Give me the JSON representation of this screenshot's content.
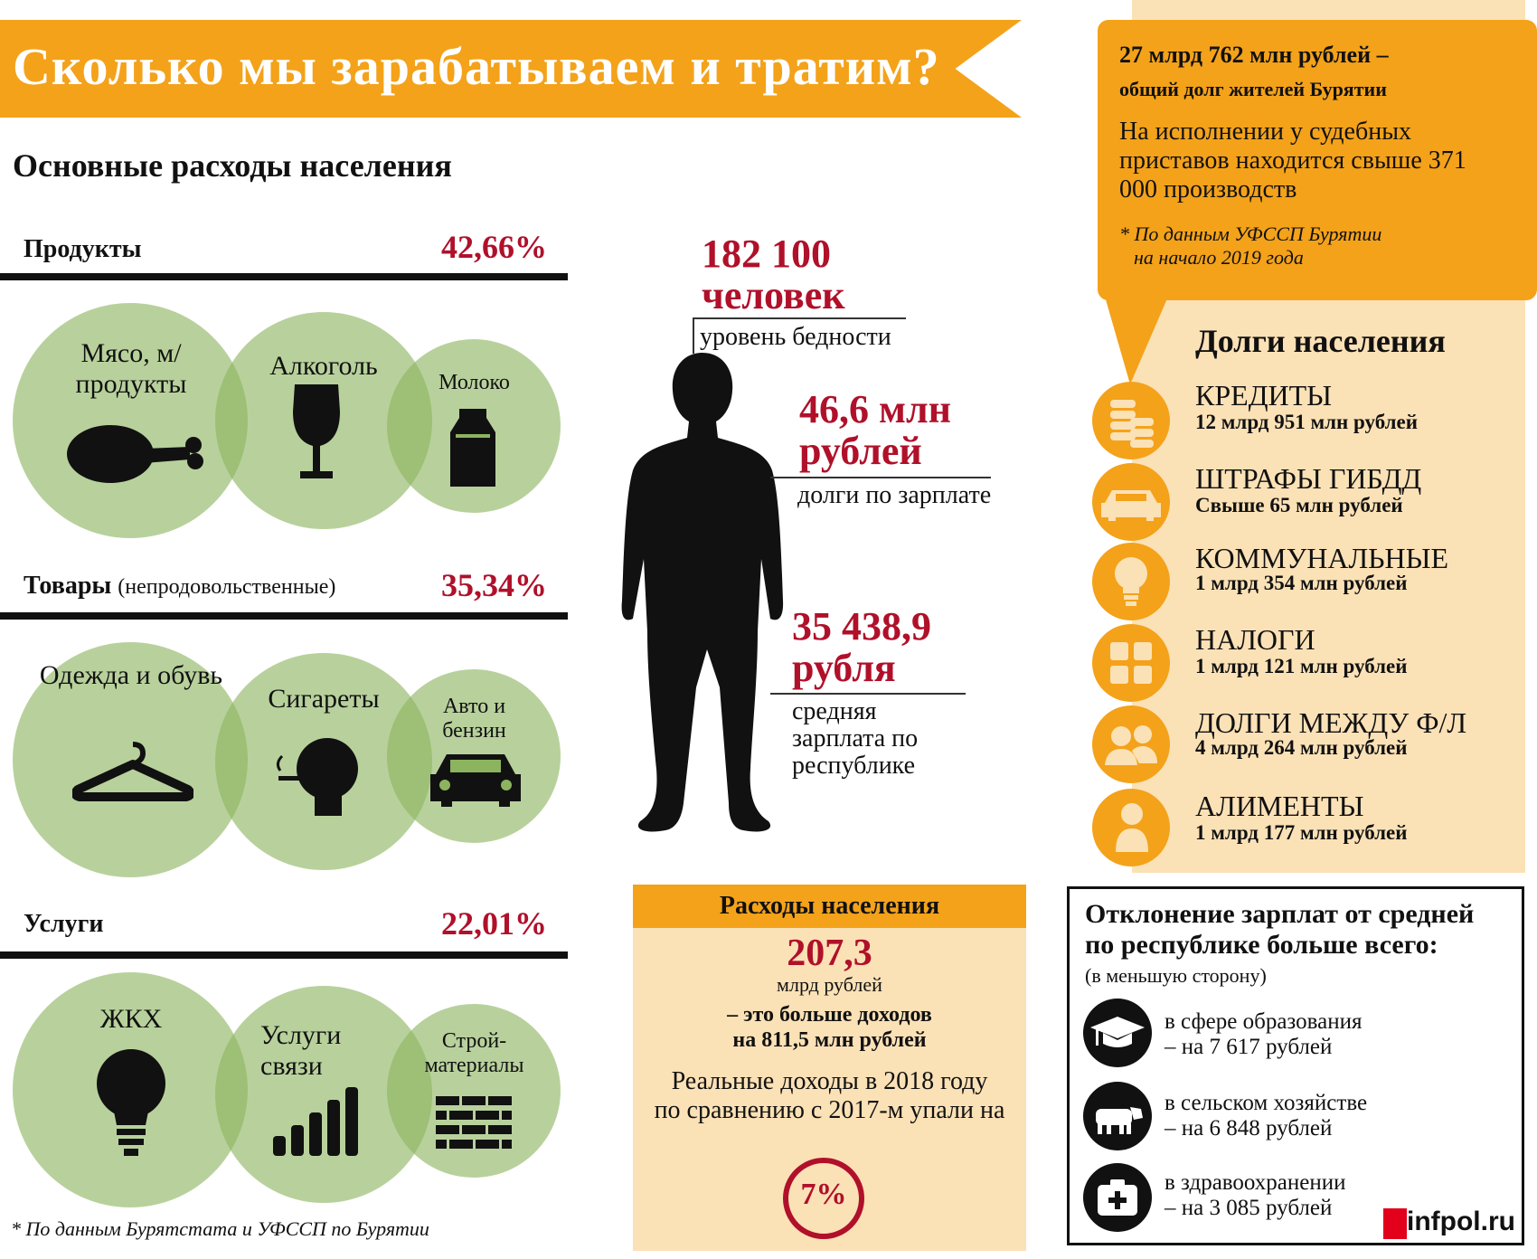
{
  "header": {
    "title": "Сколько мы зарабатываем и тратим?"
  },
  "expenses": {
    "heading": "Основные расходы населения",
    "categories": [
      {
        "label": "Продукты",
        "sublabel": "",
        "percent": "42,66%",
        "items": [
          {
            "label": "Мясо, м/продукты",
            "icon": "chicken-leg-icon"
          },
          {
            "label": "Алкоголь",
            "icon": "wine-glass-icon"
          },
          {
            "label": "Молоко",
            "icon": "milk-carton-icon"
          }
        ]
      },
      {
        "label": "Товары",
        "sublabel": "(непродовольственные)",
        "percent": "35,34%",
        "items": [
          {
            "label": "Одежда и обувь",
            "icon": "hanger-icon"
          },
          {
            "label": "Сигареты",
            "icon": "smoker-icon"
          },
          {
            "label": "Авто и бензин",
            "icon": "car-icon"
          }
        ]
      },
      {
        "label": "Услуги",
        "sublabel": "",
        "percent": "22,01%",
        "items": [
          {
            "label": "ЖКХ",
            "icon": "lightbulb-icon"
          },
          {
            "label": "Услуги связи",
            "icon": "signal-bars-icon"
          },
          {
            "label": "Строй-материалы",
            "icon": "bricks-icon"
          }
        ]
      }
    ],
    "footnote": "* По данным Бурятстата и УФССП по Бурятии"
  },
  "person_stats": [
    {
      "value_line1": "182 100",
      "value_line2": "человек",
      "caption": "уровень бедности"
    },
    {
      "value_line1": "46,6 млн",
      "value_line2": "рублей",
      "caption": "долги по зарплате"
    },
    {
      "value_line1": "35 438,9",
      "value_line2": "рубля",
      "caption": "средняя зарплата по республике"
    }
  ],
  "spending_box": {
    "heading": "Расходы населения",
    "amount": "207,3",
    "unit": "млрд рублей",
    "note_line1": "– это больше доходов",
    "note_line2": "на 811,5 млн рублей",
    "real_income_line1": "Реальные доходы в 2018 году",
    "real_income_line2": "по сравнению с 2017-м упали на",
    "drop_percent": "7%"
  },
  "total_debt": {
    "headline": "27 млрд 762 млн рублей –",
    "subline": "общий долг жителей Бурятии",
    "body": "На исполнении у судебных приставов находится свыше 371 000 производств",
    "source_line1": "* По данным УФССП Бурятии",
    "source_line2": "на начало 2019 года"
  },
  "debts": {
    "heading": "Долги населения",
    "items": [
      {
        "title": "КРЕДИТЫ",
        "value": "12 млрд 951 млн рублей",
        "icon": "coins-icon"
      },
      {
        "title": "ШТРАФЫ ГИБДД",
        "value": "Свыше 65 млн рублей",
        "icon": "car-icon"
      },
      {
        "title": "КОММУНАЛЬНЫЕ",
        "value": "1 млрд 354 млн рублей",
        "icon": "lightbulb-icon"
      },
      {
        "title": "НАЛОГИ",
        "value": "1 млрд 121 млн рублей",
        "icon": "calculator-icon"
      },
      {
        "title": "ДОЛГИ МЕЖДУ Ф/Л",
        "value": "4 млрд 264 млн рублей",
        "icon": "people-icon"
      },
      {
        "title": "АЛИМЕНТЫ",
        "value": "1 млрд 177 млн рублей",
        "icon": "baby-icon"
      }
    ]
  },
  "deviation": {
    "heading_line1": "Отклонение зарплат от средней",
    "heading_line2": "по республике больше всего:",
    "note": "(в меньшую сторону)",
    "items": [
      {
        "line1": "в сфере образования",
        "line2": "– на 7 617 рублей",
        "icon": "graduation-cap-icon"
      },
      {
        "line1": "в сельском хозяйстве",
        "line2": "– на 6 848 рублей",
        "icon": "cow-icon"
      },
      {
        "line1": "в здравоохранении",
        "line2": "– на 3 085 рублей",
        "icon": "medical-kit-icon"
      }
    ]
  },
  "logo": {
    "text": "infpol.ru"
  },
  "colors": {
    "orange": "#f4a21a",
    "cream": "#fbe1b6",
    "red": "#b0102a",
    "green": "#8cb45f"
  }
}
